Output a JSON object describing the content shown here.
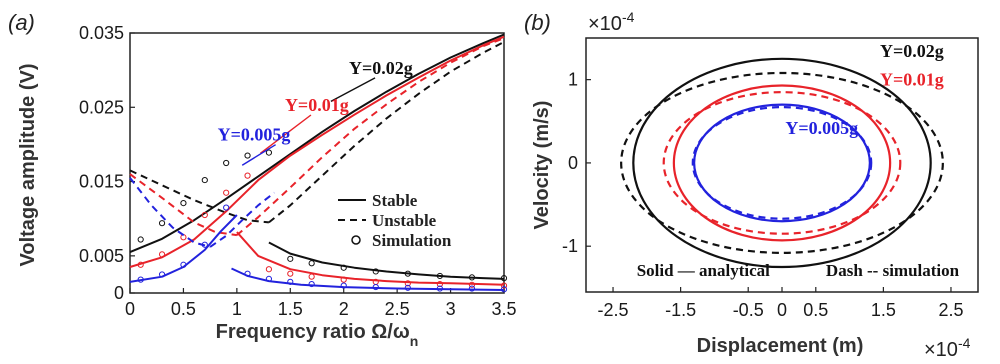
{
  "chart_data": [
    {
      "panel_label": "(a)",
      "type": "line",
      "xlabel": "Frequency ratio Ω/ω",
      "xlabel_sub": "n",
      "ylabel": "Voltage amplitude (V)",
      "xlim": [
        0,
        3.5
      ],
      "ylim": [
        0,
        0.035
      ],
      "xticks": [
        "0",
        "0.5",
        "1",
        "1.5",
        "2",
        "2.5",
        "3",
        "3.5"
      ],
      "yticks": [
        "0",
        "0.005",
        "0.015",
        "0.025",
        "0.035"
      ],
      "ytick_values": [
        0,
        0.005,
        0.015,
        0.025,
        0.035
      ],
      "legend": {
        "position": "right",
        "entries": [
          {
            "label": "Stable",
            "style": "solid"
          },
          {
            "label": "Unstable",
            "style": "dashed"
          },
          {
            "label": "Simulation",
            "style": "circle"
          }
        ]
      },
      "annotations": [
        {
          "text": "Y=0.02g",
          "color": "#111111",
          "x": 2.05,
          "y": 0.0295
        },
        {
          "text": "Y=0.01g",
          "color": "#e8232a",
          "x": 1.45,
          "y": 0.0245
        },
        {
          "text": "Y=0.005g",
          "color": "#2222dd",
          "x": 0.82,
          "y": 0.0205
        }
      ],
      "series": [
        {
          "group": "Y=0.02g",
          "color": "#111111",
          "style": "solid",
          "x": [
            0,
            0.3,
            0.6,
            0.9,
            1.2,
            1.5,
            1.8,
            2.1,
            2.4,
            2.7,
            3.0,
            3.3,
            3.5
          ],
          "y": [
            0.0055,
            0.0073,
            0.0098,
            0.0127,
            0.0157,
            0.0187,
            0.0217,
            0.0245,
            0.0271,
            0.0295,
            0.0317,
            0.0336,
            0.0348
          ]
        },
        {
          "group": "Y=0.02g",
          "color": "#111111",
          "style": "dashed",
          "x": [
            0,
            0.3,
            0.6,
            0.9,
            1.1,
            1.3
          ],
          "y": [
            0.0165,
            0.0145,
            0.0125,
            0.0108,
            0.0098,
            0.0095
          ]
        },
        {
          "group": "Y=0.02g",
          "color": "#111111",
          "style": "dashed",
          "x": [
            1.3,
            1.5,
            1.8,
            2.1,
            2.4,
            2.7,
            3.0,
            3.3,
            3.5
          ],
          "y": [
            0.0095,
            0.0118,
            0.0158,
            0.0198,
            0.0235,
            0.0268,
            0.0298,
            0.0323,
            0.0338
          ]
        },
        {
          "group": "Y=0.02g",
          "color": "#111111",
          "style": "solid",
          "x": [
            1.3,
            1.5,
            1.8,
            2.1,
            2.4,
            2.7,
            3.0,
            3.3,
            3.5
          ],
          "y": [
            0.0068,
            0.0053,
            0.0041,
            0.0034,
            0.0029,
            0.0025,
            0.0022,
            0.002,
            0.0019
          ]
        },
        {
          "group": "Y=0.02g",
          "color": "#111111",
          "style": "circle",
          "x": [
            0.1,
            0.3,
            0.5,
            0.7,
            0.9,
            1.1,
            1.3,
            1.5,
            1.7,
            2.0,
            2.3,
            2.6,
            2.9,
            3.2,
            3.5
          ],
          "y": [
            0.0072,
            0.0094,
            0.0121,
            0.0152,
            0.0175,
            0.0185,
            0.0189,
            0.0046,
            0.004,
            0.0034,
            0.0029,
            0.0026,
            0.0023,
            0.0021,
            0.002
          ]
        },
        {
          "group": "Y=0.01g",
          "color": "#e8232a",
          "style": "solid",
          "x": [
            0,
            0.3,
            0.6,
            0.9,
            1.2,
            1.5,
            1.8,
            2.1,
            2.4,
            2.7,
            3.0,
            3.3,
            3.5
          ],
          "y": [
            0.0035,
            0.0048,
            0.0072,
            0.011,
            0.0152,
            0.0185,
            0.0213,
            0.024,
            0.0266,
            0.029,
            0.0313,
            0.0333,
            0.0345
          ]
        },
        {
          "group": "Y=0.01g",
          "color": "#e8232a",
          "style": "dashed",
          "x": [
            0,
            0.3,
            0.6,
            0.8,
            1.0
          ],
          "y": [
            0.016,
            0.0128,
            0.0095,
            0.0082,
            0.0078
          ]
        },
        {
          "group": "Y=0.01g",
          "color": "#e8232a",
          "style": "dashed",
          "x": [
            1.0,
            1.2,
            1.5,
            1.8,
            2.1,
            2.4,
            2.7,
            3.0,
            3.3,
            3.5
          ],
          "y": [
            0.0078,
            0.0102,
            0.0142,
            0.0183,
            0.0221,
            0.0254,
            0.0284,
            0.031,
            0.0332,
            0.0343
          ]
        },
        {
          "group": "Y=0.01g",
          "color": "#e8232a",
          "style": "solid",
          "x": [
            1.0,
            1.2,
            1.5,
            1.8,
            2.1,
            2.4,
            2.7,
            3.0,
            3.3,
            3.5
          ],
          "y": [
            0.0082,
            0.005,
            0.0032,
            0.0024,
            0.0019,
            0.0016,
            0.0014,
            0.0013,
            0.0012,
            0.0011
          ]
        },
        {
          "group": "Y=0.01g",
          "color": "#e8232a",
          "style": "circle",
          "x": [
            0.1,
            0.3,
            0.5,
            0.7,
            0.9,
            1.1,
            1.3,
            1.5,
            1.7,
            2.0,
            2.3,
            2.6,
            2.9,
            3.2,
            3.5
          ],
          "y": [
            0.0038,
            0.0052,
            0.0075,
            0.0105,
            0.0135,
            0.0158,
            0.0032,
            0.0026,
            0.0022,
            0.0018,
            0.0015,
            0.0013,
            0.0012,
            0.0011,
            0.001
          ]
        },
        {
          "group": "Y=0.005g",
          "color": "#2222dd",
          "style": "solid",
          "x": [
            0,
            0.3,
            0.5,
            0.7,
            0.85,
            1.0
          ],
          "y": [
            0.0015,
            0.0022,
            0.0035,
            0.0058,
            0.0083,
            0.0105
          ]
        },
        {
          "group": "Y=0.005g",
          "color": "#2222dd",
          "style": "dashed",
          "x": [
            0,
            0.2,
            0.4,
            0.6,
            0.75
          ],
          "y": [
            0.0155,
            0.0118,
            0.0088,
            0.0068,
            0.0062
          ]
        },
        {
          "group": "Y=0.005g",
          "color": "#2222dd",
          "style": "dashed",
          "x": [
            0.75,
            0.9,
            1.05,
            1.2,
            1.35
          ],
          "y": [
            0.0062,
            0.0077,
            0.0098,
            0.0118,
            0.0135
          ]
        },
        {
          "group": "Y=0.005g",
          "color": "#2222dd",
          "style": "solid",
          "x": [
            0.95,
            1.1,
            1.3,
            1.6,
            2.0,
            2.5,
            3.0,
            3.5
          ],
          "y": [
            0.0033,
            0.0023,
            0.0016,
            0.0011,
            0.0008,
            0.0006,
            0.0005,
            0.0004
          ]
        },
        {
          "group": "Y=0.005g",
          "color": "#2222dd",
          "style": "circle",
          "x": [
            0.1,
            0.3,
            0.5,
            0.7,
            0.9,
            1.1,
            1.3,
            1.5,
            1.7,
            2.0,
            2.3,
            2.6,
            2.9,
            3.2,
            3.5
          ],
          "y": [
            0.0018,
            0.0025,
            0.0038,
            0.0065,
            0.0115,
            0.0026,
            0.0019,
            0.0015,
            0.0012,
            0.001,
            0.0008,
            0.0007,
            0.0006,
            0.0006,
            0.0005
          ]
        }
      ]
    },
    {
      "panel_label": "(b)",
      "type": "line",
      "xlabel": "Displacement (m)",
      "ylabel": "Velocity (m/s)",
      "x_exponent": "×10",
      "y_exponent": "×10",
      "exponent_power": "-4",
      "xlim": [
        -2.5,
        2.5
      ],
      "ylim": [
        -1.5,
        1.5
      ],
      "xticks": [
        "-2.5",
        "-1.5",
        "-0.5",
        "0",
        "0.5",
        "1.5",
        "2.5"
      ],
      "xtick_values": [
        -2.5,
        -1.5,
        -0.5,
        0,
        0.5,
        1.5,
        2.5
      ],
      "yticks": [
        "-1",
        "0",
        "1"
      ],
      "ytick_values": [
        -1,
        0,
        1
      ],
      "annotations": [
        {
          "text": "Y=0.02g",
          "color": "#111111",
          "x": 1.45,
          "y": 1.27
        },
        {
          "text": "Y=0.01g",
          "color": "#e8232a",
          "x": 1.45,
          "y": 0.93
        },
        {
          "text": "Y=0.005g",
          "color": "#2222dd",
          "x": 0.05,
          "y": 0.35
        },
        {
          "text": "Solid — analytical",
          "color": "#111111",
          "x": -2.15,
          "y": -1.36
        },
        {
          "text": "Dash -- simulation",
          "color": "#111111",
          "x": 0.65,
          "y": -1.36
        }
      ],
      "series": [
        {
          "group": "Y=0.02g",
          "color": "#111111",
          "style": "solid",
          "shape": "ellipse",
          "cx": 0,
          "cy": 0,
          "rx": 2.2,
          "ry": 1.25
        },
        {
          "group": "Y=0.02g",
          "color": "#111111",
          "style": "dashed",
          "shape": "ellipse",
          "cx": 0,
          "cy": 0,
          "rx": 2.38,
          "ry": 1.08
        },
        {
          "group": "Y=0.01g",
          "color": "#e8232a",
          "style": "solid",
          "shape": "ellipse",
          "cx": 0,
          "cy": 0,
          "rx": 1.6,
          "ry": 0.93
        },
        {
          "group": "Y=0.01g",
          "color": "#e8232a",
          "style": "dashed",
          "shape": "ellipse",
          "cx": 0,
          "cy": 0,
          "rx": 1.75,
          "ry": 0.85
        },
        {
          "group": "Y=0.005g",
          "color": "#2222dd",
          "style": "solid",
          "shape": "ellipse",
          "cx": 0,
          "cy": 0,
          "rx": 1.3,
          "ry": 0.7
        },
        {
          "group": "Y=0.005g",
          "color": "#2222dd",
          "style": "dashed",
          "shape": "ellipse",
          "cx": 0,
          "cy": 0,
          "rx": 1.32,
          "ry": 0.67
        }
      ]
    }
  ]
}
